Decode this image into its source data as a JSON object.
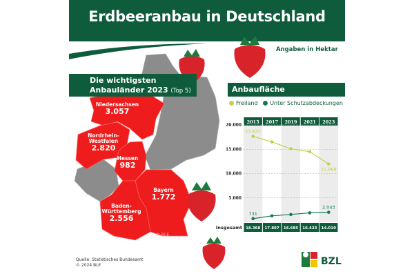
{
  "header": {
    "title": "Erdbeeranbau in Deutschland",
    "unit_note": "Angaben in Hektar"
  },
  "map": {
    "title_line1": "Die wichtigsten",
    "title_line2": "Anbauländer 2023",
    "title_suffix": "(Top 5)",
    "states": [
      {
        "name": "Niedersachsen",
        "value": "3.057"
      },
      {
        "name_line1": "Nordrhein-",
        "name_line2": "Westfalen",
        "value": "2.820"
      },
      {
        "name": "Hessen",
        "value": "982"
      },
      {
        "name": "Bayern",
        "value": "1.772"
      },
      {
        "name_line1": "Baden-",
        "name_line2": "Württemberg",
        "value": "2.556"
      }
    ],
    "copyright": "© BLE",
    "colors": {
      "highlight": "#ee1c1c",
      "other": "#8c8c8c"
    }
  },
  "chart_data": {
    "type": "line",
    "title": "Anbaufläche",
    "x": [
      "2015",
      "2017",
      "2019",
      "2021",
      "2023"
    ],
    "series": [
      {
        "name": "Freiland",
        "color": "#c5cf4a",
        "values": [
          17637,
          16500,
          15100,
          14500,
          11968
        ],
        "labels": [
          "17.637",
          "",
          "",
          "",
          "11.968"
        ]
      },
      {
        "name": "Unter Schutzabdeckungen",
        "color": "#137a52",
        "values": [
          731,
          1307,
          1585,
          1923,
          2043
        ],
        "labels": [
          "731",
          "",
          "",
          "",
          "2.043"
        ]
      }
    ],
    "ylim": [
      0,
      20000
    ],
    "yticks": [
      {
        "v": 20000,
        "label": "20.000"
      },
      {
        "v": 15000,
        "label": "15.000"
      },
      {
        "v": 10000,
        "label": "10.000"
      },
      {
        "v": 5000,
        "label": "5.000"
      }
    ],
    "totals_label": "Insgesamt",
    "totals": [
      "18.368",
      "17.807",
      "16.685",
      "16.423",
      "14.010"
    ],
    "grid": "dashed horizontal"
  },
  "footer": {
    "source": "Quelle: Statistisches Bundesamt",
    "copyright": "© 2024 BLE",
    "logo": "BZL"
  }
}
